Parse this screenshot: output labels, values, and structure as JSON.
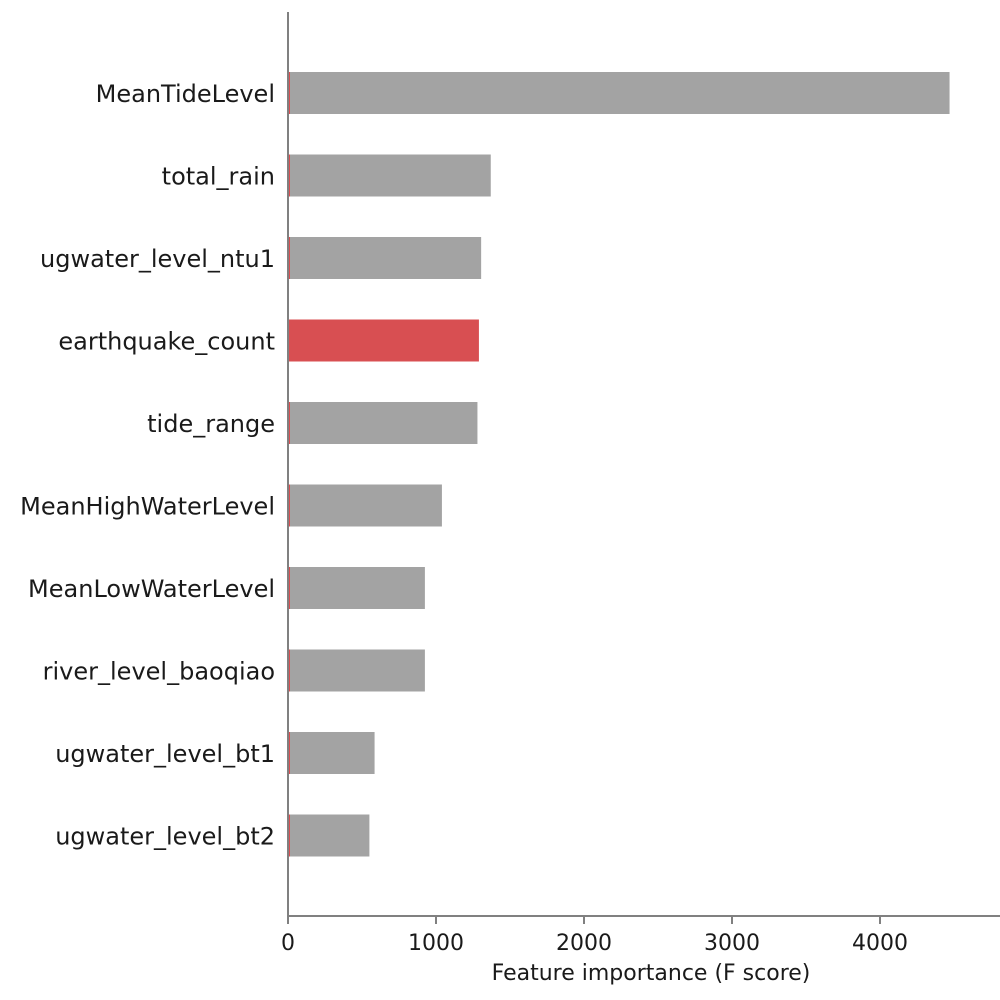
{
  "chart_data": {
    "type": "bar",
    "orientation": "horizontal",
    "categories": [
      "MeanTideLevel",
      "total_rain",
      "ugwater_level_ntu1",
      "earthquake_count",
      "tide_range",
      "MeanHighWaterLevel",
      "MeanLowWaterLevel",
      "river_level_baoqiao",
      "ugwater_level_bt1",
      "ugwater_level_bt2"
    ],
    "values": [
      4470,
      1370,
      1305,
      1290,
      1280,
      1040,
      925,
      925,
      585,
      550
    ],
    "highlight": "earthquake_count",
    "colors": {
      "bar": "#a3a3a3",
      "highlight": "#d84f52",
      "accent_edge": "#d84f52",
      "axis": "#808080",
      "text": "#1a1a1a"
    },
    "xlabel": "Feature importance (F score)",
    "ylabel": "",
    "xlim": [
      0,
      4800
    ],
    "xticks": [
      "0",
      "1000",
      "2000",
      "3000",
      "4000"
    ],
    "grid": false
  }
}
